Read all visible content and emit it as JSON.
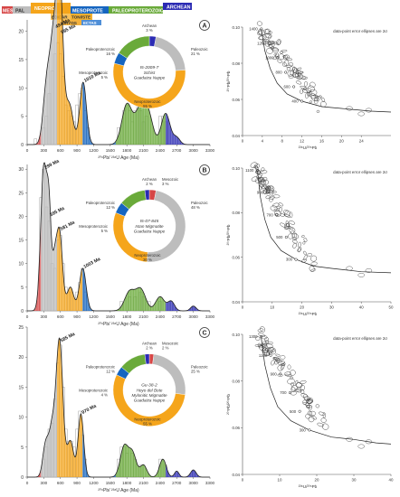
{
  "timescale": [
    "MES",
    "PAL",
    "NEOPRO",
    "MESOPROTE",
    "PALEOPROTEROZOIC",
    "ARCHEAN",
    "EDICAR",
    "TONI/STE",
    "CRYOG",
    "ECTAS"
  ],
  "colors": {
    "paleozoic": "#bdbdbd",
    "neoproterozoic": "#f5a51b",
    "mesoproterozoic": "#1565c0",
    "paleoproterozoic": "#6aaa3a",
    "archean": "#2b2bb3",
    "mesozoic": "#d64545",
    "curve": "#333333"
  },
  "chart_data": [
    {
      "type": "area",
      "panel": "A",
      "x_ticks": [
        "0",
        "300",
        "600",
        "900",
        "1200",
        "1500",
        "1800",
        "2100",
        "2400",
        "2700",
        "3000",
        "3300"
      ],
      "y_ticks": [
        "0",
        "5",
        "10",
        "15",
        "20"
      ],
      "ylim": [
        0,
        22
      ],
      "xlabel": "²⁰⁶Pb/ ²³⁸U Age (Ma)",
      "peaks": [
        {
          "label": "494 Ma",
          "x": 494,
          "y": 20.5
        },
        {
          "label": "595 Ma",
          "x": 595,
          "y": 19.5
        },
        {
          "label": "1010 Ma",
          "x": 1010,
          "y": 11
        }
      ],
      "donut": {
        "sample": "I5-2009-7",
        "lines": [
          "Schist",
          "Guadaiza Nappe"
        ],
        "slices": [
          {
            "name": "Archean",
            "label": "Archean",
            "pct": "3 %",
            "value": 3
          },
          {
            "name": "Paleozoic",
            "label": "Paleozoic",
            "pct": "21 %",
            "value": 21
          },
          {
            "name": "Neoproterozoic",
            "label": "Neoproterozoic",
            "pct": "55 %",
            "value": 55
          },
          {
            "name": "Mesoproterozoic",
            "label": "Mesoproterozoic",
            "pct": "5 %",
            "value": 5
          },
          {
            "name": "Paleoproterozoic",
            "label": "Paleoproterozoic",
            "pct": "16 %",
            "value": 16
          }
        ]
      }
    },
    {
      "type": "scatter",
      "panel": "A",
      "note": "data-point error ellipses are 2σ",
      "ylim": [
        0.04,
        0.1
      ],
      "x_ticks": [
        "0",
        "4",
        "8",
        "12",
        "16",
        "20",
        "24"
      ],
      "xlabel": "²³⁸U/²⁰⁶Pb",
      "ylabel": "²⁰⁷Pb/²⁰⁶Pb",
      "age_ticks": [
        "1400",
        "1200",
        "1000",
        "800",
        "600",
        "400"
      ]
    },
    {
      "type": "area",
      "panel": "B",
      "x_ticks": [
        "0",
        "300",
        "600",
        "900",
        "1200",
        "1500",
        "1800",
        "2100",
        "2400",
        "2700",
        "3000",
        "3300"
      ],
      "y_ticks": [
        "0",
        "5",
        "10",
        "15",
        "20",
        "25",
        "30"
      ],
      "ylim": [
        0,
        31
      ],
      "xlabel": "²⁰⁶Pb/ ²³⁸U Age (Ma)",
      "peaks": [
        {
          "label": "299 Ma",
          "x": 299,
          "y": 30
        },
        {
          "label": "395 Ma",
          "x": 395,
          "y": 20
        },
        {
          "label": "581 Ma",
          "x": 581,
          "y": 17
        },
        {
          "label": "1003 Ma",
          "x": 1003,
          "y": 9
        }
      ],
      "donut": {
        "sample": "I5-07-845",
        "lines": [
          "Istan Migmatite",
          "Guadaiza Nappe"
        ],
        "slices": [
          {
            "name": "Mesozoic",
            "label": "Mesozoic",
            "pct": "3 %",
            "value": 3
          },
          {
            "name": "Paleozoic",
            "label": "Paleozoic",
            "pct": "48 %",
            "value": 48
          },
          {
            "name": "Neoproterozoic",
            "label": "Neoproterozoic",
            "pct": "30 %",
            "value": 30
          },
          {
            "name": "Mesoproterozoic",
            "label": "Mesoproterozoic",
            "pct": "5 %",
            "value": 5
          },
          {
            "name": "Paleoproterozoic",
            "label": "Paleoproterozoic",
            "pct": "12 %",
            "value": 12
          },
          {
            "name": "Archean",
            "label": "Archean",
            "pct": "2 %",
            "value": 2
          }
        ]
      }
    },
    {
      "type": "scatter",
      "panel": "B",
      "note": "data-point error ellipses are 2σ",
      "ylim": [
        0.04,
        0.1
      ],
      "x_ticks": [
        "0",
        "10",
        "20",
        "30",
        "40",
        "50"
      ],
      "xlabel": "²³⁸U/²⁰⁶Pb",
      "ylabel": "²⁰⁷Pb/²⁰⁶Pb",
      "age_ticks": [
        "1100",
        "900",
        "700",
        "500",
        "300"
      ]
    },
    {
      "type": "area",
      "panel": "C",
      "x_ticks": [
        "0",
        "300",
        "600",
        "900",
        "1200",
        "1500",
        "1800",
        "2100",
        "2400",
        "2700",
        "3000",
        "3300"
      ],
      "y_ticks": [
        "0",
        "5",
        "10",
        "15",
        "20",
        "25"
      ],
      "ylim": [
        0,
        25
      ],
      "xlabel": "²⁰⁶Pb/ ²³⁸U Age (Ma)",
      "peaks": [
        {
          "label": "585 Ma",
          "x": 585,
          "y": 22.5
        },
        {
          "label": "970 Ma",
          "x": 970,
          "y": 10.5
        }
      ],
      "donut": {
        "sample": "Gu-38-2",
        "lines": [
          "Hoyo del Bote",
          "Mylonitic Migmatite",
          "Guadaiza Nappe"
        ],
        "slices": [
          {
            "name": "Mesozoic",
            "label": "Mesozoic",
            "pct": "2 %",
            "value": 2
          },
          {
            "name": "Paleozoic",
            "label": "Paleozoic",
            "pct": "25 %",
            "value": 25
          },
          {
            "name": "Neoproterozoic",
            "label": "Neoproterozoic",
            "pct": "55 %",
            "value": 55
          },
          {
            "name": "Mesoproterozoic",
            "label": "Mesoproterozoic",
            "pct": "4 %",
            "value": 4
          },
          {
            "name": "Paleoproterozoic",
            "label": "Paleoproterozoic",
            "pct": "12 %",
            "value": 12
          },
          {
            "name": "Archean",
            "label": "Archean",
            "pct": "2 %",
            "value": 2
          }
        ]
      }
    },
    {
      "type": "scatter",
      "panel": "C",
      "note": "data-point error ellipses are 2σ",
      "ylim": [
        0.04,
        0.1
      ],
      "x_ticks": [
        "0",
        "10",
        "20",
        "30",
        "40"
      ],
      "xlabel": "²³⁸U/²⁰⁶Pb",
      "ylabel": "²⁰⁷Pb/²⁰⁶Pb",
      "age_ticks": [
        "1300",
        "1100",
        "900",
        "700",
        "500",
        "300"
      ]
    }
  ]
}
